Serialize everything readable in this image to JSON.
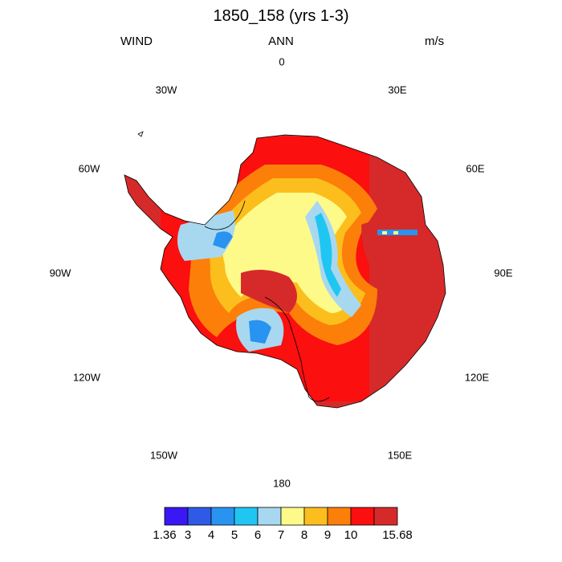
{
  "title": "1850_158 (yrs 1-3)",
  "left_label": "WIND",
  "center_label": "ANN",
  "right_label": "m/s",
  "longitude_labels": [
    "0",
    "30E",
    "60E",
    "90E",
    "120E",
    "150E",
    "180",
    "150W",
    "120W",
    "90W",
    "60W",
    "30W"
  ],
  "colorbar": {
    "labels": [
      "1.36",
      "3",
      "4",
      "5",
      "6",
      "7",
      "8",
      "9",
      "10",
      "15.68"
    ],
    "colors": [
      "#3a17f5",
      "#2f5ae6",
      "#2893f0",
      "#1fc6f2",
      "#a8d8f0",
      "#fefa8a",
      "#fcbe1c",
      "#fc7f0a",
      "#fb0f0f",
      "#d62a2a"
    ]
  },
  "chart_data": {
    "type": "heatmap",
    "projection": "south-polar-stereographic",
    "variable": "WIND",
    "season": "ANN",
    "units": "m/s",
    "min": 1.36,
    "max": 15.68,
    "levels": [
      3,
      4,
      5,
      6,
      7,
      8,
      9,
      10
    ],
    "longitude_labels": [
      "0",
      "30E",
      "60E",
      "90E",
      "120E",
      "150E",
      "180",
      "150W",
      "120W",
      "90W",
      "60W",
      "30W"
    ]
  }
}
